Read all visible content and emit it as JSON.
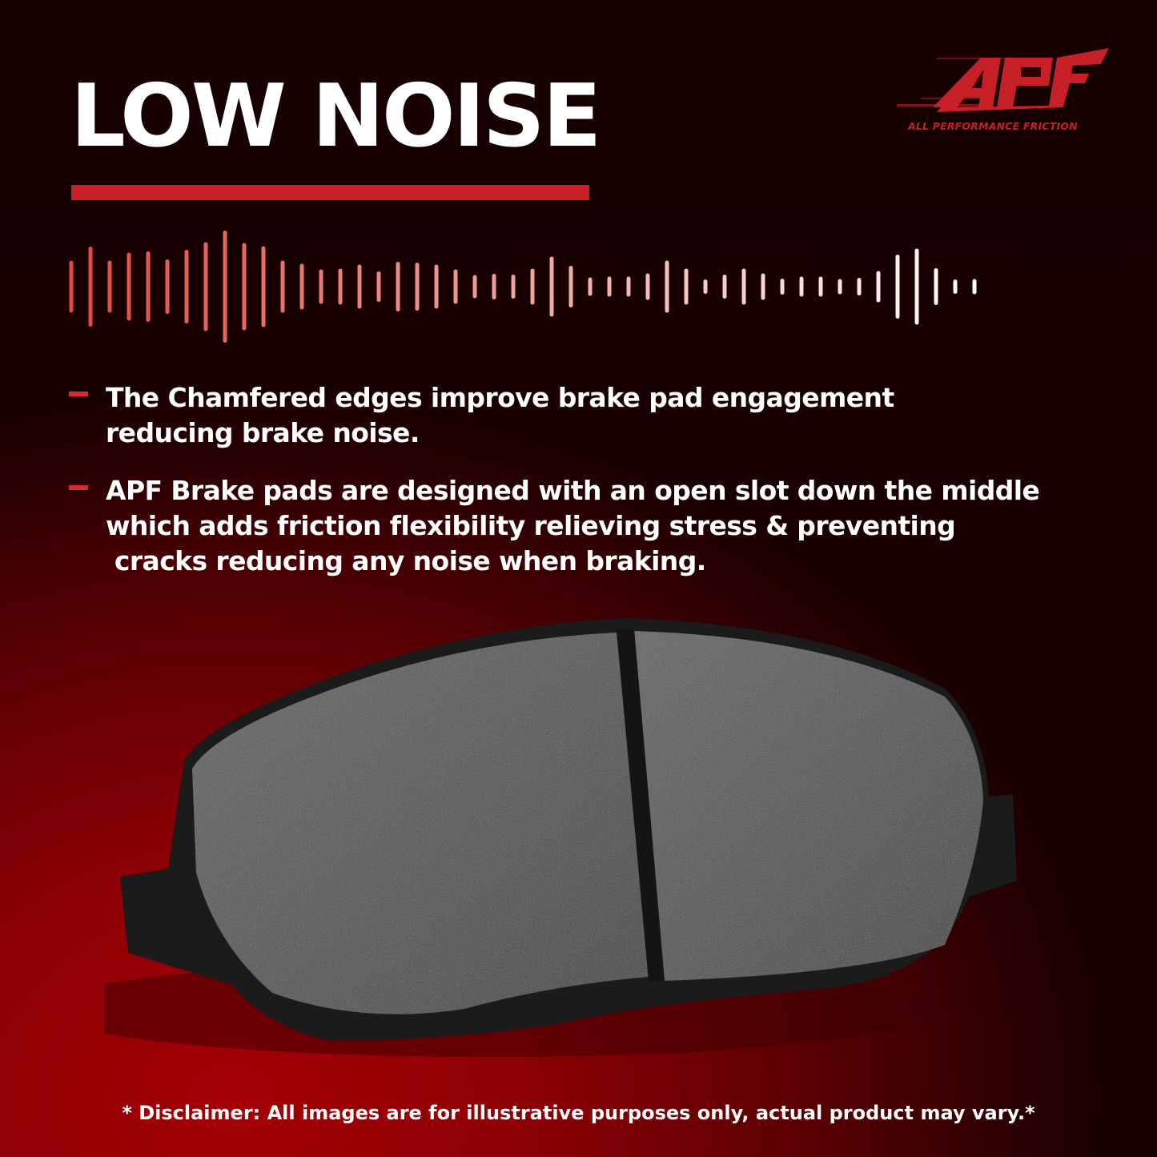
{
  "headline": "LOW NOISE",
  "brand": {
    "logo_text": "APF",
    "tagline": "ALL PERFORMANCE FRICTION",
    "color": "#c62026"
  },
  "bullets": [
    {
      "lines": [
        "The Chamfered edges improve brake pad engagement",
        "reducing brake noise."
      ]
    },
    {
      "lines": [
        "APF Brake pads are designed with an open slot down the middle",
        "which adds friction flexibility relieving stress & preventing",
        " cracks reducing any noise when braking."
      ]
    }
  ],
  "disclaimer": "* Disclaimer: All images are for illustrative purposes only, actual product may vary.*",
  "icons": [
    "sound-wave-icon",
    "brake-pad-image"
  ]
}
